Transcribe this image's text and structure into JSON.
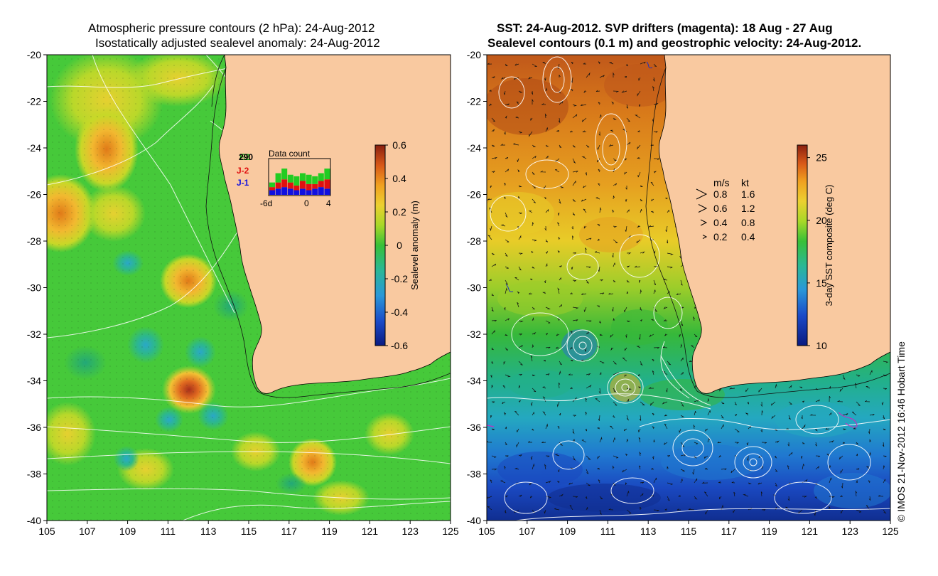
{
  "left_panel": {
    "title_line1": "Atmospheric pressure contours (2 hPa): 24-Aug-2012",
    "title_line2": "Isostatically adjusted sealevel anomaly: 24-Aug-2012",
    "colorbar": {
      "label": "Sealevel anomaly (m)",
      "ticks": [
        "0.6",
        "0.4",
        "0.2",
        "0",
        "-0.2",
        "-0.4",
        "-0.6"
      ],
      "range": [
        -0.6,
        0.6
      ]
    },
    "satellite_legend": {
      "items": [
        {
          "label": "E2",
          "color": "#1aa81a"
        },
        {
          "label": "J-2",
          "color": "#e01010"
        },
        {
          "label": "J-1",
          "color": "#1010e0"
        }
      ],
      "count_label": "290"
    },
    "data_count": {
      "title": "Data count",
      "xtick_labels": [
        "-6d",
        "0",
        "4"
      ],
      "bars": [
        {
          "blue": 3,
          "red": 2,
          "green": 3
        },
        {
          "blue": 4,
          "red": 4,
          "green": 6
        },
        {
          "blue": 5,
          "red": 5,
          "green": 7
        },
        {
          "blue": 4,
          "red": 4,
          "green": 5
        },
        {
          "blue": 3,
          "red": 3,
          "green": 6
        },
        {
          "blue": 4,
          "red": 5,
          "green": 5
        },
        {
          "blue": 3,
          "red": 4,
          "green": 6
        },
        {
          "blue": 4,
          "red": 3,
          "green": 5
        },
        {
          "blue": 5,
          "red": 4,
          "green": 5
        },
        {
          "blue": 4,
          "red": 6,
          "green": 7
        }
      ],
      "max": 23
    }
  },
  "right_panel": {
    "title_line1": "SST: 24-Aug-2012. SVP drifters (magenta): 18 Aug - 27 Aug",
    "title_line2": "Sealevel contours (0.1 m) and geostrophic velocity: 24-Aug-2012.",
    "colorbar": {
      "label": "3-day SST composite (deg C)",
      "ticks": [
        "25",
        "20",
        "15",
        "10"
      ],
      "range": [
        10,
        26
      ]
    },
    "velocity_legend": {
      "header_ms": "m/s",
      "header_kt": "kt",
      "rows": [
        {
          "ms": "0.8",
          "kt": "1.6"
        },
        {
          "ms": "0.6",
          "kt": "1.2"
        },
        {
          "ms": "0.4",
          "kt": "0.8"
        },
        {
          "ms": "0.2",
          "kt": "0.4"
        }
      ]
    }
  },
  "axes": {
    "xlim": [
      105,
      125
    ],
    "ylim": [
      -40,
      -20
    ],
    "x_ticks": [
      "105",
      "107",
      "109",
      "111",
      "113",
      "115",
      "117",
      "119",
      "121",
      "123",
      "125"
    ],
    "y_ticks": [
      "-20",
      "-22",
      "-24",
      "-26",
      "-28",
      "-30",
      "-32",
      "-34",
      "-36",
      "-38",
      "-40"
    ]
  },
  "copyright": "© IMOS 21-Nov-2012 16:46 Hobart Time",
  "colors": {
    "land": "#f9c9a0",
    "sla_base": "#46c93a",
    "sst_warm": "#d97a10",
    "sst_cold": "#1a52c8"
  }
}
